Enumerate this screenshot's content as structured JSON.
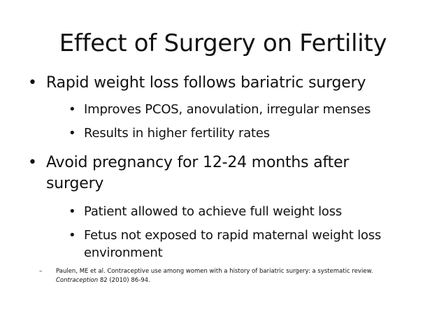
{
  "title": "Effect of Surgery on Fertility",
  "bullet_marker": "•",
  "dash_marker": "–",
  "bullets": [
    {
      "text": "Rapid weight loss follows bariatric surgery",
      "subs": [
        "Improves PCOS, anovulation, irregular menses",
        "Results in higher fertility rates"
      ]
    },
    {
      "text": "Avoid pregnancy for 12-24 months after surgery",
      "subs": [
        "Patient allowed to achieve full weight loss",
        "Fetus not exposed to rapid maternal weight loss environment"
      ]
    }
  ],
  "reference": {
    "prefix": "Paulen, ME et al. Contraceptive use among women with a history of bariatric surgery: a systematic review. ",
    "journal": "Contraception",
    "suffix": " 82 (2010) 86-94."
  }
}
